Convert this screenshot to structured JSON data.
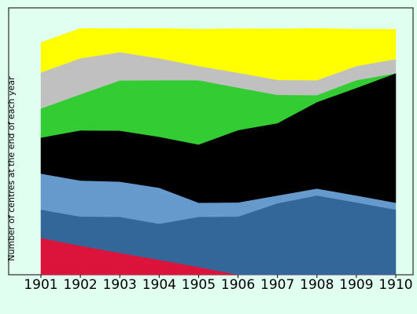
{
  "chart_data": {
    "type": "stacked_area",
    "y_label": "Number of centres at the end of each year",
    "categories": [
      "1901",
      "1902",
      "1903",
      "1904",
      "1905",
      "1906",
      "1907",
      "1908",
      "1909",
      "1910"
    ],
    "ylim": [
      0,
      100
    ],
    "series": [
      {
        "color": "#dc143c",
        "values": [
          13.8,
          10.9,
          8.2,
          5.6,
          2.9,
          0,
          0,
          0,
          0,
          0
        ]
      },
      {
        "color": "#336699",
        "values": [
          10.6,
          10.9,
          13.5,
          13.5,
          18.8,
          21.8,
          26.8,
          29.7,
          27.1,
          24.4
        ]
      },
      {
        "color": "#6699cc",
        "values": [
          13.5,
          13.5,
          13.2,
          13.5,
          5.3,
          5.3,
          2.9,
          2.6,
          2.6,
          2.6
        ]
      },
      {
        "color": "#000000",
        "values": [
          13.5,
          18.8,
          19.1,
          19.1,
          21.8,
          27.1,
          27.1,
          32.4,
          40.3,
          48.5
        ]
      },
      {
        "color": "#33cc33",
        "values": [
          10.9,
          13.5,
          18.8,
          21.2,
          24.1,
          15.9,
          10.6,
          2.6,
          2.9,
          0
        ]
      },
      {
        "color": "#c0c0c0",
        "values": [
          13.5,
          13.5,
          10.6,
          8.2,
          5.3,
          5.6,
          5.6,
          5.6,
          5.3,
          5.3
        ]
      },
      {
        "color": "#ffff00",
        "values": [
          11.2,
          11.2,
          8.8,
          11.2,
          13.8,
          16.5,
          19.1,
          19.4,
          13.8,
          11.2
        ]
      }
    ]
  }
}
